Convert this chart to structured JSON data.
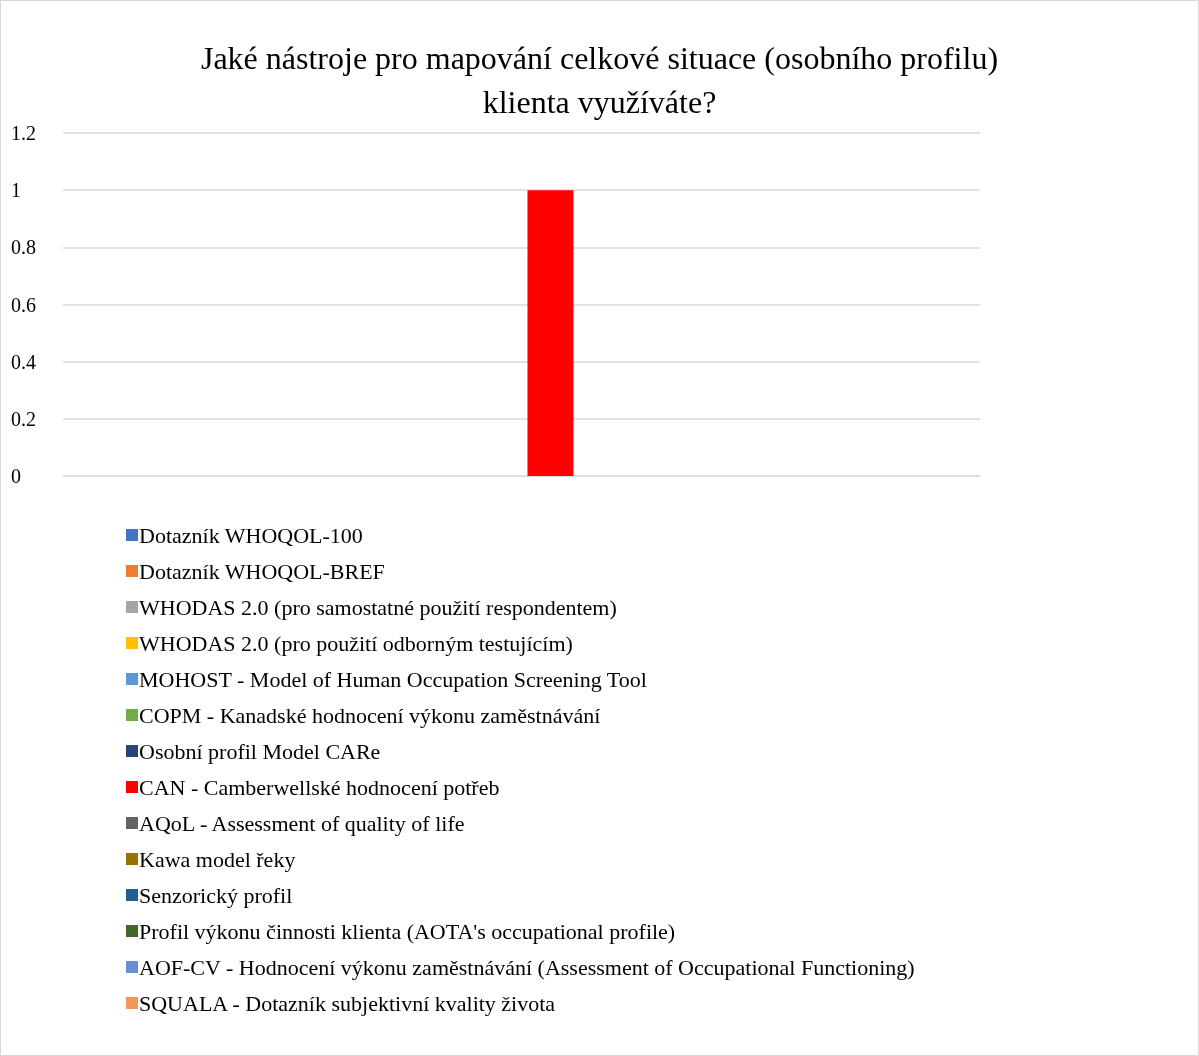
{
  "chart_data": {
    "type": "bar",
    "title": "Jaké nástroje pro mapování celkové situace (osobního profilu)\nklienta využíváte?",
    "categories": [
      null
    ],
    "series": [
      {
        "name": "Dotazník WHOQOL-100",
        "color": "#4472c4",
        "values": [
          0
        ]
      },
      {
        "name": "Dotazník WHOQOL-BREF",
        "color": "#ed7d31",
        "values": [
          0
        ]
      },
      {
        "name": "WHODAS 2.0 (pro samostatné použití respondentem)",
        "color": "#a5a5a5",
        "values": [
          0
        ]
      },
      {
        "name": "WHODAS 2.0 (pro použití odborným testujícím)",
        "color": "#ffc000",
        "values": [
          0
        ]
      },
      {
        "name": "MOHOST - Model of Human Occupation Screening Tool",
        "color": "#5b9bd5",
        "values": [
          0
        ]
      },
      {
        "name": "COPM - Kanadské hodnocení výkonu zaměstnávání",
        "color": "#70ad47",
        "values": [
          0
        ]
      },
      {
        "name": "Osobní profil Model CARe",
        "color": "#264478",
        "values": [
          0
        ]
      },
      {
        "name": "CAN - Camberwellské hodnocení potřeb",
        "color": "#ff0000",
        "values": [
          1
        ]
      },
      {
        "name": "AQoL - Assessment of quality of life",
        "color": "#636363",
        "values": [
          0
        ]
      },
      {
        "name": "Kawa model řeky",
        "color": "#997300",
        "values": [
          0
        ]
      },
      {
        "name": "Senzorický profil",
        "color": "#255e91",
        "values": [
          0
        ]
      },
      {
        "name": "Profil výkonu činnosti klienta (AOTA's occupational profile)",
        "color": "#43682b",
        "values": [
          0
        ]
      },
      {
        "name": "AOF-CV - Hodnocení výkonu zaměstnávání (Assessment of Occupational Functioning)",
        "color": "#698ed0",
        "values": [
          0
        ]
      },
      {
        "name": "SQUALA - Dotazník subjektivní kvality života",
        "color": "#f1975a",
        "values": [
          0
        ]
      }
    ],
    "ylim": [
      0,
      1.2
    ],
    "yticks": [
      0,
      0.2,
      0.4,
      0.6,
      0.8,
      1,
      1.2
    ],
    "grid": "y",
    "legend": "bottom"
  }
}
